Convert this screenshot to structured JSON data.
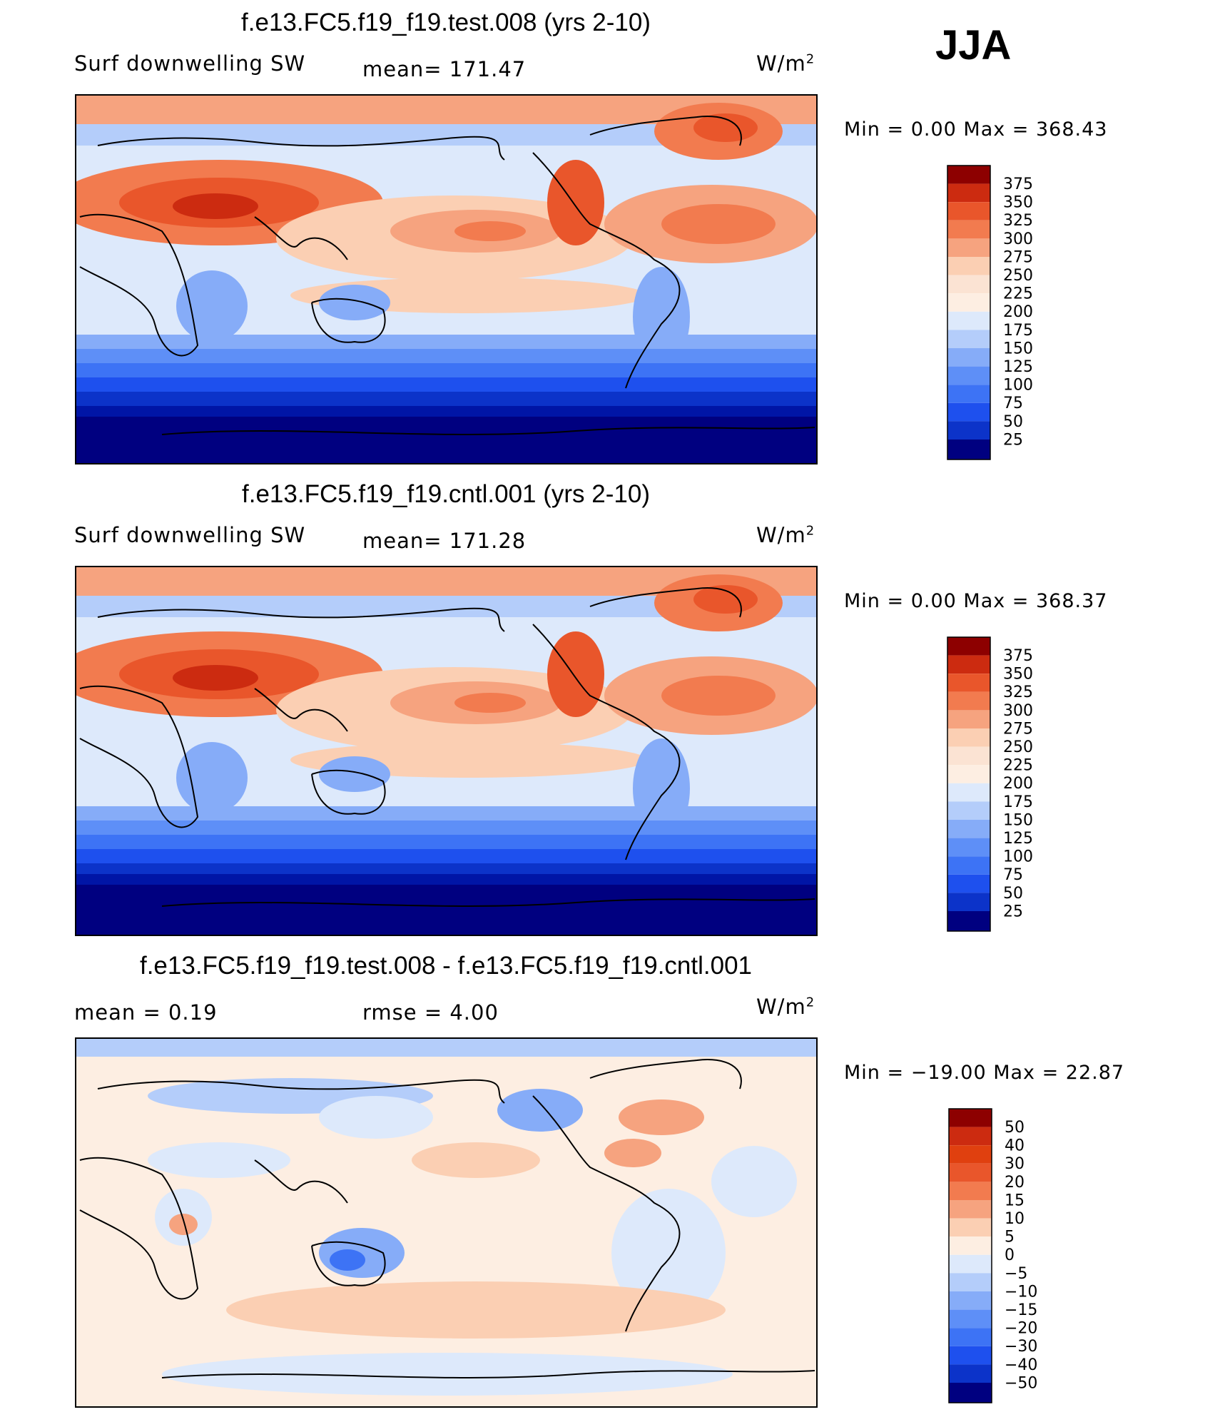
{
  "season": "JJA",
  "panels": [
    {
      "title": "f.e13.FC5.f19_f19.test.008 (yrs 2-10)",
      "left_label": "Surf downwelling SW",
      "center_label": "mean=  171.47",
      "unit_label": "W/m",
      "unit_sup": "2",
      "minmax": "Min  =     0.00  Max  =  368.43",
      "colorbar": [
        "375",
        "350",
        "325",
        "300",
        "275",
        "250",
        "225",
        "200",
        "175",
        "150",
        "125",
        "100",
        "75",
        "50",
        "25"
      ]
    },
    {
      "title": "f.e13.FC5.f19_f19.cntl.001 (yrs 2-10)",
      "left_label": "Surf downwelling SW",
      "center_label": "mean=  171.28",
      "unit_label": "W/m",
      "unit_sup": "2",
      "minmax": "Min  =     0.00  Max  =  368.37",
      "colorbar": [
        "375",
        "350",
        "325",
        "300",
        "275",
        "250",
        "225",
        "200",
        "175",
        "150",
        "125",
        "100",
        "75",
        "50",
        "25"
      ]
    },
    {
      "title": "f.e13.FC5.f19_f19.test.008 - f.e13.FC5.f19_f19.cntl.001",
      "left_label": "mean  =     0.19",
      "center_label": "rmse  =     4.00",
      "unit_label": "W/m",
      "unit_sup": "2",
      "minmax": "Min  = −19.00  Max  =    22.87",
      "colorbar": [
        "50",
        "40",
        "30",
        "20",
        "15",
        "10",
        "5",
        "0",
        "−5",
        "−10",
        "−15",
        "−20",
        "−30",
        "−40",
        "−50"
      ]
    }
  ],
  "colors": {
    "field_scale": [
      "#000080",
      "#0015a6",
      "#0c33c9",
      "#1e50ee",
      "#3d73f5",
      "#5e8ff7",
      "#86acf8",
      "#b4cdfa",
      "#dde9fb",
      "#fdeee2",
      "#fbcfb3",
      "#f6a37f",
      "#f27b4f",
      "#e9562b",
      "#cc2b10",
      "#8d0000"
    ],
    "diff_scale": [
      "#000080",
      "#0015a6",
      "#0c33c9",
      "#1e50ee",
      "#3d73f5",
      "#5e8ff7",
      "#86acf8",
      "#b4cdfa",
      "#dde9fb",
      "#fdeee2",
      "#fbcfb3",
      "#f6a37f",
      "#f27b4f",
      "#e9562b",
      "#cc2b10",
      "#8d0000"
    ]
  },
  "chart_data": [
    {
      "type": "heatmap",
      "title": "f.e13.FC5.f19_f19.test.008 (yrs 2-10)",
      "variable": "Surf downwelling SW",
      "units": "W/m2",
      "season": "JJA",
      "mean": 171.47,
      "min": 0.0,
      "max": 368.43,
      "levels": [
        25,
        50,
        75,
        100,
        125,
        150,
        175,
        200,
        225,
        250,
        275,
        300,
        325,
        350,
        375
      ]
    },
    {
      "type": "heatmap",
      "title": "f.e13.FC5.f19_f19.cntl.001 (yrs 2-10)",
      "variable": "Surf downwelling SW",
      "units": "W/m2",
      "season": "JJA",
      "mean": 171.28,
      "min": 0.0,
      "max": 368.37,
      "levels": [
        25,
        50,
        75,
        100,
        125,
        150,
        175,
        200,
        225,
        250,
        275,
        300,
        325,
        350,
        375
      ]
    },
    {
      "type": "heatmap",
      "title": "f.e13.FC5.f19_f19.test.008 - f.e13.FC5.f19_f19.cntl.001",
      "units": "W/m2",
      "season": "JJA",
      "mean": 0.19,
      "rmse": 4.0,
      "min": -19.0,
      "max": 22.87,
      "levels": [
        -50,
        -40,
        -30,
        -20,
        -15,
        -10,
        -5,
        0,
        5,
        10,
        15,
        20,
        30,
        40,
        50
      ]
    }
  ]
}
